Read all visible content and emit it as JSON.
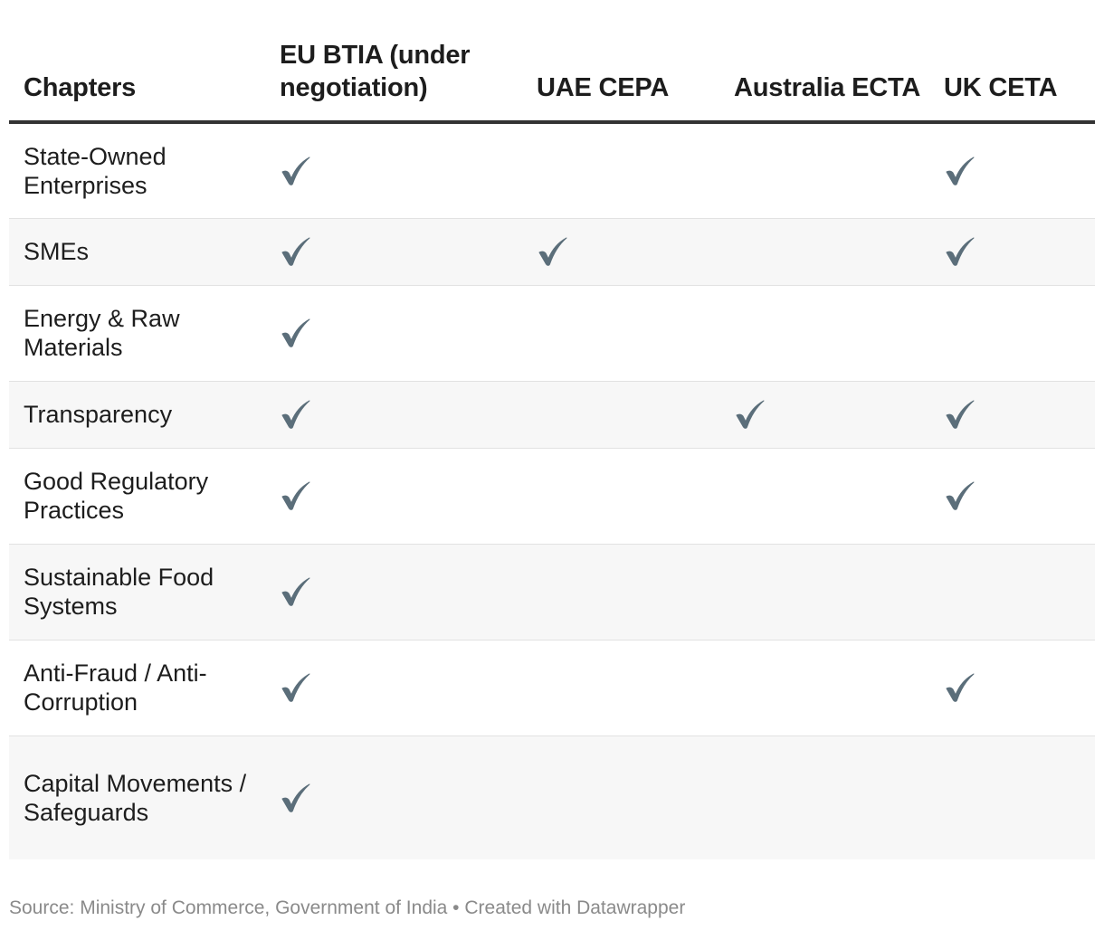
{
  "chart_data": {
    "type": "table",
    "columns": [
      "Chapters",
      "EU BTIA (under negotiation)",
      "UAE CEPA",
      "Australia ECTA",
      "UK CETA"
    ],
    "rows": [
      {
        "chapter": "State-Owned Enterprises",
        "marks": [
          true,
          false,
          false,
          true
        ]
      },
      {
        "chapter": "SMEs",
        "marks": [
          true,
          true,
          false,
          true
        ]
      },
      {
        "chapter": "Energy & Raw Materials",
        "marks": [
          true,
          false,
          false,
          false
        ]
      },
      {
        "chapter": "Transparency",
        "marks": [
          true,
          false,
          true,
          true
        ]
      },
      {
        "chapter": "Good Regulatory Practices",
        "marks": [
          true,
          false,
          false,
          true
        ]
      },
      {
        "chapter": "Sustainable Food Systems",
        "marks": [
          true,
          false,
          false,
          false
        ]
      },
      {
        "chapter": "Anti-Fraud / Anti-Corruption",
        "marks": [
          true,
          false,
          false,
          true
        ]
      },
      {
        "chapter": "Capital Movements / Safeguards",
        "marks": [
          true,
          false,
          false,
          false
        ]
      }
    ],
    "mark_symbol": "✔",
    "mark_color": "#5b6e7a",
    "row_stripe_color": "#f7f7f7",
    "header_rule_color": "#333333"
  },
  "footer": {
    "text": "Source: Ministry of Commerce, Government of India • Created with Datawrapper"
  }
}
